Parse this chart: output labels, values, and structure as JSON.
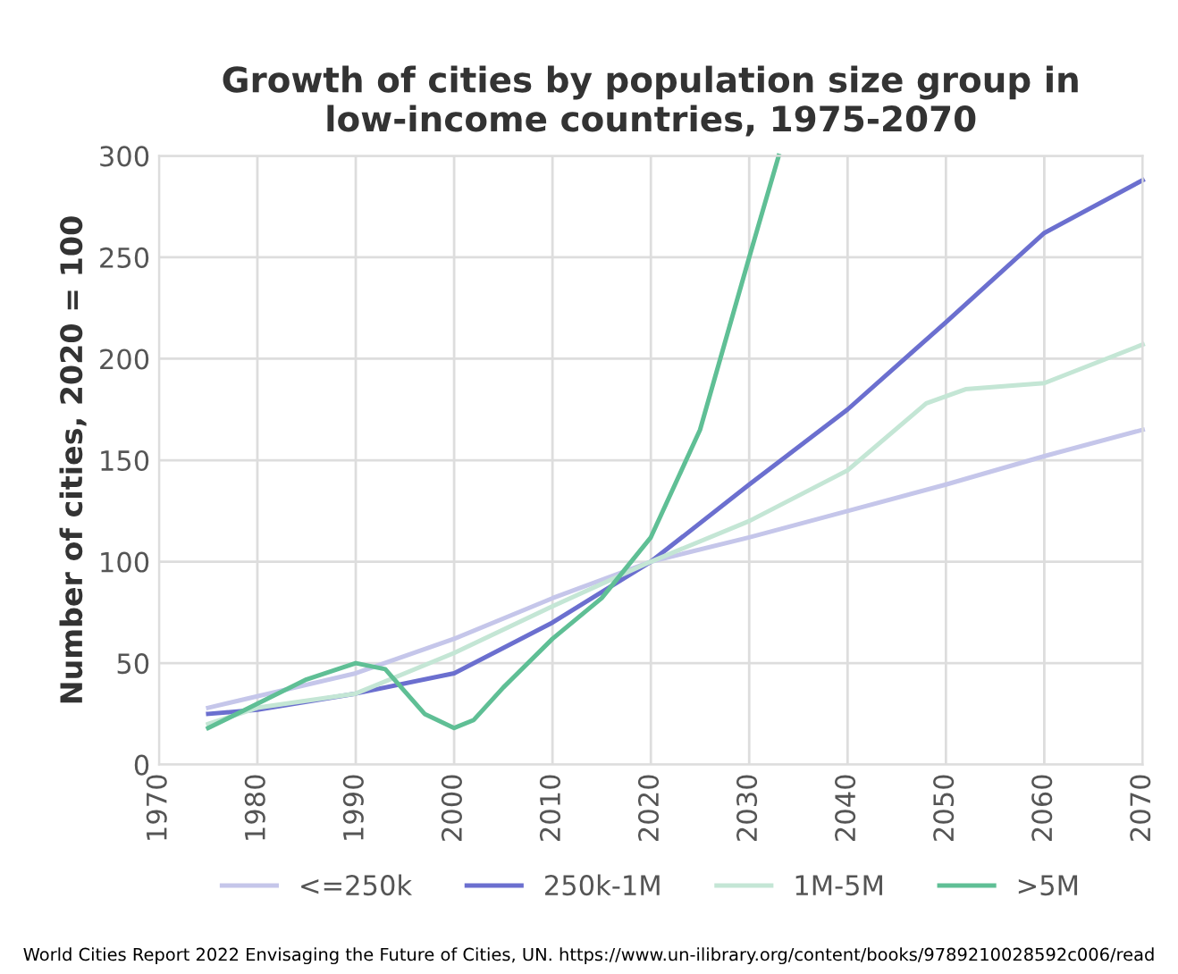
{
  "chart_data": {
    "type": "line",
    "title": "Growth of cities by population size group in low-income countries, 1975-2070",
    "ylabel": "Number of cities, 2020 = 100",
    "xlim": [
      1970,
      2070
    ],
    "xticks": [
      1970,
      1980,
      1990,
      2000,
      2010,
      2020,
      2030,
      2040,
      2050,
      2060,
      2070
    ],
    "ylim": [
      0,
      300
    ],
    "yticks": [
      0,
      50,
      100,
      150,
      200,
      250,
      300
    ],
    "grid": true,
    "legend": "bottom",
    "marker": "none",
    "line_style": "solid",
    "annotations": [
      "World Cities Report 2022 Envisaging the Future of Cities, UN. https://www.un-ilibrary.org/content/books/9789210028592c006/read"
    ],
    "series": [
      {
        "name": "<=250k",
        "color": "#c5c6ea",
        "x": [
          1975,
          1990,
          2000,
          2010,
          2020,
          2030,
          2040,
          2050,
          2060,
          2070
        ],
        "values": [
          28,
          45,
          62,
          82,
          100,
          112,
          125,
          138,
          152,
          165
        ]
      },
      {
        "name": "250k-1M",
        "color": "#6b6fcf",
        "x": [
          1975,
          1980,
          1990,
          2000,
          2010,
          2020,
          2030,
          2040,
          2050,
          2060,
          2070
        ],
        "values": [
          25,
          27,
          35,
          45,
          70,
          100,
          138,
          175,
          218,
          262,
          288
        ]
      },
      {
        "name": "1M-5M",
        "color": "#c4e6d5",
        "x": [
          1975,
          1980,
          1990,
          2000,
          2010,
          2020,
          2030,
          2040,
          2048,
          2052,
          2060,
          2070
        ],
        "values": [
          20,
          28,
          35,
          55,
          78,
          100,
          120,
          145,
          178,
          185,
          188,
          207
        ]
      },
      {
        "name": ">5M",
        "color": "#5fbf95",
        "x": [
          1975,
          1980,
          1985,
          1990,
          1993,
          1997,
          2000,
          2002,
          2005,
          2010,
          2015,
          2020,
          2025,
          2030,
          2033
        ],
        "values": [
          18,
          30,
          42,
          50,
          47,
          25,
          18,
          22,
          38,
          62,
          82,
          112,
          165,
          250,
          300
        ]
      }
    ]
  }
}
